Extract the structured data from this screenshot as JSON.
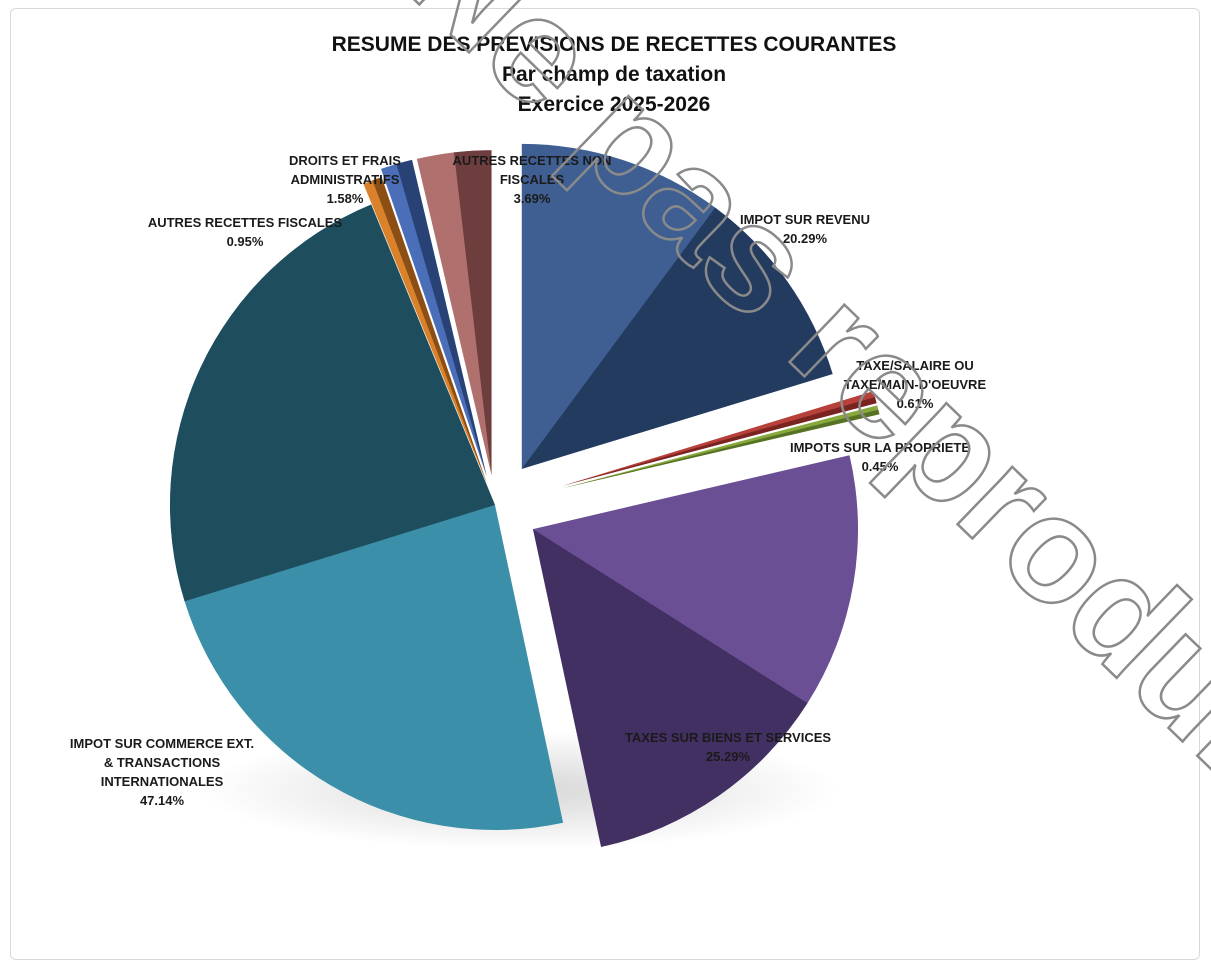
{
  "chart_data": {
    "type": "pie",
    "title": "RESUME DES PREVISIONS DE RECETTES COURANTES",
    "subtitle": "Par champ de taxation",
    "subtitle2": "Exercice 2025-2026",
    "slices": [
      {
        "label_lines": [
          "IMPOT SUR REVENU"
        ],
        "value_text": "20.29%",
        "value": 20.29,
        "color": "#3f5f93",
        "dark": "#1f3355"
      },
      {
        "label_lines": [
          "TAXE/SALAIRE OU",
          "TAXE/MAIN-D'OEUVRE"
        ],
        "value_text": "0.61%",
        "value": 0.61,
        "color": "#b8403a",
        "dark": "#6d1f1c"
      },
      {
        "label_lines": [
          "IMPOTS SUR LA PROPRIETE"
        ],
        "value_text": "0.45%",
        "value": 0.45,
        "color": "#86a83c",
        "dark": "#4e6620"
      },
      {
        "label_lines": [
          "TAXES SUR BIENS ET SERVICES"
        ],
        "value_text": "25.29%",
        "value": 25.29,
        "color": "#6a4f94",
        "dark": "#3a2a58"
      },
      {
        "label_lines": [
          "IMPOT SUR COMMERCE EXT.",
          "& TRANSACTIONS",
          "INTERNATIONALES"
        ],
        "value_text": "47.14%",
        "value": 47.14,
        "color": "#3c8fa8",
        "dark": "#17404e"
      },
      {
        "label_lines": [
          "AUTRES RECETTES FISCALES"
        ],
        "value_text": "0.95%",
        "value": 0.95,
        "color": "#d9822b",
        "dark": "#7a4412"
      },
      {
        "label_lines": [
          "DROITS ET FRAIS",
          "ADMINISTRATIFS"
        ],
        "value_text": "1.58%",
        "value": 1.58,
        "color": "#4a6fb8",
        "dark": "#223868"
      },
      {
        "label_lines": [
          "AUTRES RECETTES NON",
          "FISCALES"
        ],
        "value_text": "3.69%",
        "value": 3.69,
        "color": "#b0706e",
        "dark": "#5e3332"
      }
    ]
  },
  "watermark": "Ne pas reproduire"
}
